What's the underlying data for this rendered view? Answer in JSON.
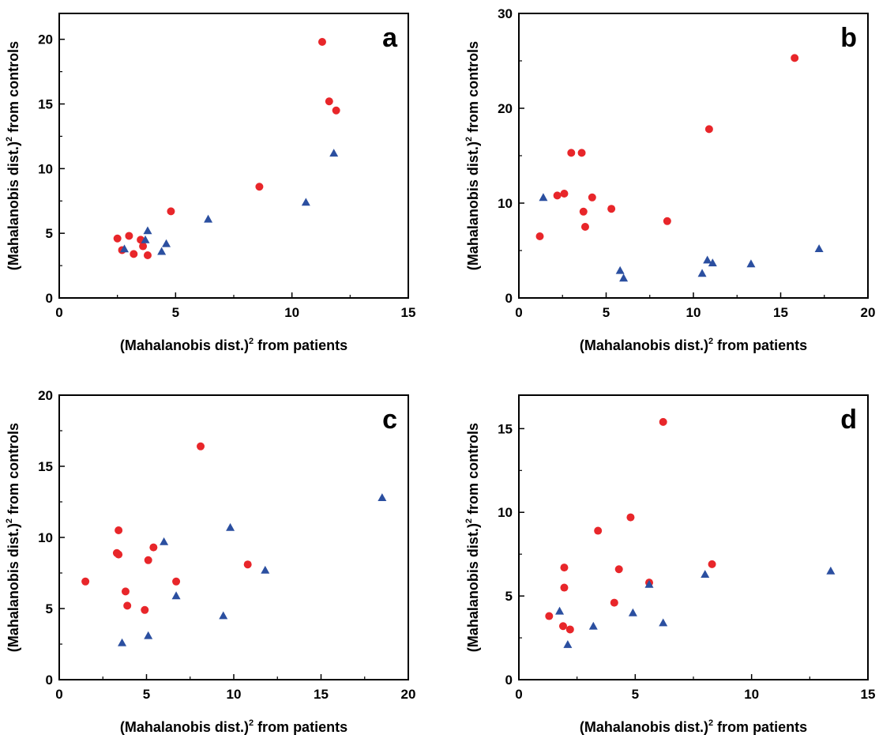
{
  "chart_data": [
    {
      "type": "scatter",
      "panel_label": "a",
      "xlabel": "(Mahalanobis dist.)",
      "xlabel_sup": "2",
      "xlabel_suffix": " from patients",
      "ylabel": "(Mahalanobis dist.)",
      "ylabel_sup": "2",
      "ylabel_suffix": " from controls",
      "xlim": [
        0,
        15
      ],
      "ylim": [
        0,
        22
      ],
      "xticks": [
        0,
        5,
        10,
        15
      ],
      "yticks": [
        0,
        5,
        10,
        15,
        20
      ],
      "grid": false,
      "series": [
        {
          "marker": "circle",
          "color": "#e8262a",
          "points": [
            [
              2.5,
              4.6
            ],
            [
              2.7,
              3.7
            ],
            [
              3.0,
              4.8
            ],
            [
              3.2,
              3.4
            ],
            [
              3.5,
              4.5
            ],
            [
              3.6,
              4.0
            ],
            [
              3.8,
              3.3
            ],
            [
              4.8,
              6.7
            ],
            [
              8.6,
              8.6
            ],
            [
              11.3,
              19.8
            ],
            [
              11.6,
              15.2
            ],
            [
              11.9,
              14.5
            ]
          ]
        },
        {
          "marker": "triangle",
          "color": "#2b4fa0",
          "points": [
            [
              2.8,
              3.8
            ],
            [
              3.7,
              4.5
            ],
            [
              3.8,
              5.2
            ],
            [
              4.4,
              3.6
            ],
            [
              4.6,
              4.2
            ],
            [
              6.4,
              6.1
            ],
            [
              10.6,
              7.4
            ],
            [
              11.8,
              11.2
            ]
          ]
        }
      ]
    },
    {
      "type": "scatter",
      "panel_label": "b",
      "xlabel": "(Mahalanobis dist.)",
      "xlabel_sup": "2",
      "xlabel_suffix": " from patients",
      "ylabel": "(Mahalanobis dist.)",
      "ylabel_sup": "2",
      "ylabel_suffix": " from controls",
      "xlim": [
        0,
        20
      ],
      "ylim": [
        0,
        30
      ],
      "xticks": [
        0,
        5,
        10,
        15,
        20
      ],
      "yticks": [
        0,
        10,
        20,
        30
      ],
      "grid": false,
      "series": [
        {
          "marker": "circle",
          "color": "#e8262a",
          "points": [
            [
              1.2,
              6.5
            ],
            [
              2.2,
              10.8
            ],
            [
              2.6,
              11.0
            ],
            [
              3.0,
              15.3
            ],
            [
              3.6,
              15.3
            ],
            [
              3.7,
              9.1
            ],
            [
              3.8,
              7.5
            ],
            [
              4.2,
              10.6
            ],
            [
              5.3,
              9.4
            ],
            [
              8.5,
              8.1
            ],
            [
              10.9,
              17.8
            ],
            [
              15.8,
              25.3
            ]
          ]
        },
        {
          "marker": "triangle",
          "color": "#2b4fa0",
          "points": [
            [
              1.4,
              10.6
            ],
            [
              5.8,
              2.9
            ],
            [
              6.0,
              2.1
            ],
            [
              10.5,
              2.6
            ],
            [
              10.8,
              4.0
            ],
            [
              11.1,
              3.7
            ],
            [
              13.3,
              3.6
            ],
            [
              17.2,
              5.2
            ]
          ]
        }
      ]
    },
    {
      "type": "scatter",
      "panel_label": "c",
      "xlabel": "(Mahalanobis dist.)",
      "xlabel_sup": "2",
      "xlabel_suffix": " from patients",
      "ylabel": "(Mahalanobis dist.)",
      "ylabel_sup": "2",
      "ylabel_suffix": " from controls",
      "xlim": [
        0,
        20
      ],
      "ylim": [
        0,
        20
      ],
      "xticks": [
        0,
        5,
        10,
        15,
        20
      ],
      "yticks": [
        0,
        5,
        10,
        15,
        20
      ],
      "grid": false,
      "series": [
        {
          "marker": "circle",
          "color": "#e8262a",
          "points": [
            [
              1.5,
              6.9
            ],
            [
              3.3,
              8.9
            ],
            [
              3.4,
              10.5
            ],
            [
              3.4,
              8.8
            ],
            [
              3.8,
              6.2
            ],
            [
              3.9,
              5.2
            ],
            [
              4.9,
              4.9
            ],
            [
              5.1,
              8.4
            ],
            [
              5.4,
              9.3
            ],
            [
              6.7,
              6.9
            ],
            [
              8.1,
              16.4
            ],
            [
              10.8,
              8.1
            ]
          ]
        },
        {
          "marker": "triangle",
          "color": "#2b4fa0",
          "points": [
            [
              3.6,
              2.6
            ],
            [
              5.1,
              3.1
            ],
            [
              6.0,
              9.7
            ],
            [
              6.7,
              5.9
            ],
            [
              9.4,
              4.5
            ],
            [
              9.8,
              10.7
            ],
            [
              11.8,
              7.7
            ],
            [
              18.5,
              12.8
            ]
          ]
        }
      ]
    },
    {
      "type": "scatter",
      "panel_label": "d",
      "xlabel": "(Mahalanobis dist.)",
      "xlabel_sup": "2",
      "xlabel_suffix": " from patients",
      "ylabel": "(Mahalanobis dist.)",
      "ylabel_sup": "2",
      "ylabel_suffix": " from controls",
      "xlim": [
        0,
        15
      ],
      "ylim": [
        0,
        17
      ],
      "xticks": [
        0,
        5,
        10,
        15
      ],
      "yticks": [
        0,
        5,
        10,
        15
      ],
      "grid": false,
      "series": [
        {
          "marker": "circle",
          "color": "#e8262a",
          "points": [
            [
              1.3,
              3.8
            ],
            [
              1.9,
              3.2
            ],
            [
              1.95,
              6.7
            ],
            [
              1.95,
              5.5
            ],
            [
              2.2,
              3.0
            ],
            [
              3.4,
              8.9
            ],
            [
              4.1,
              4.6
            ],
            [
              4.3,
              6.6
            ],
            [
              4.8,
              9.7
            ],
            [
              5.6,
              5.8
            ],
            [
              6.2,
              15.4
            ],
            [
              8.3,
              6.9
            ]
          ]
        },
        {
          "marker": "triangle",
          "color": "#2b4fa0",
          "points": [
            [
              1.75,
              4.1
            ],
            [
              2.1,
              2.1
            ],
            [
              3.2,
              3.2
            ],
            [
              4.9,
              4.0
            ],
            [
              5.6,
              5.7
            ],
            [
              6.2,
              3.4
            ],
            [
              8.0,
              6.3
            ],
            [
              13.4,
              6.5
            ]
          ]
        }
      ]
    }
  ]
}
